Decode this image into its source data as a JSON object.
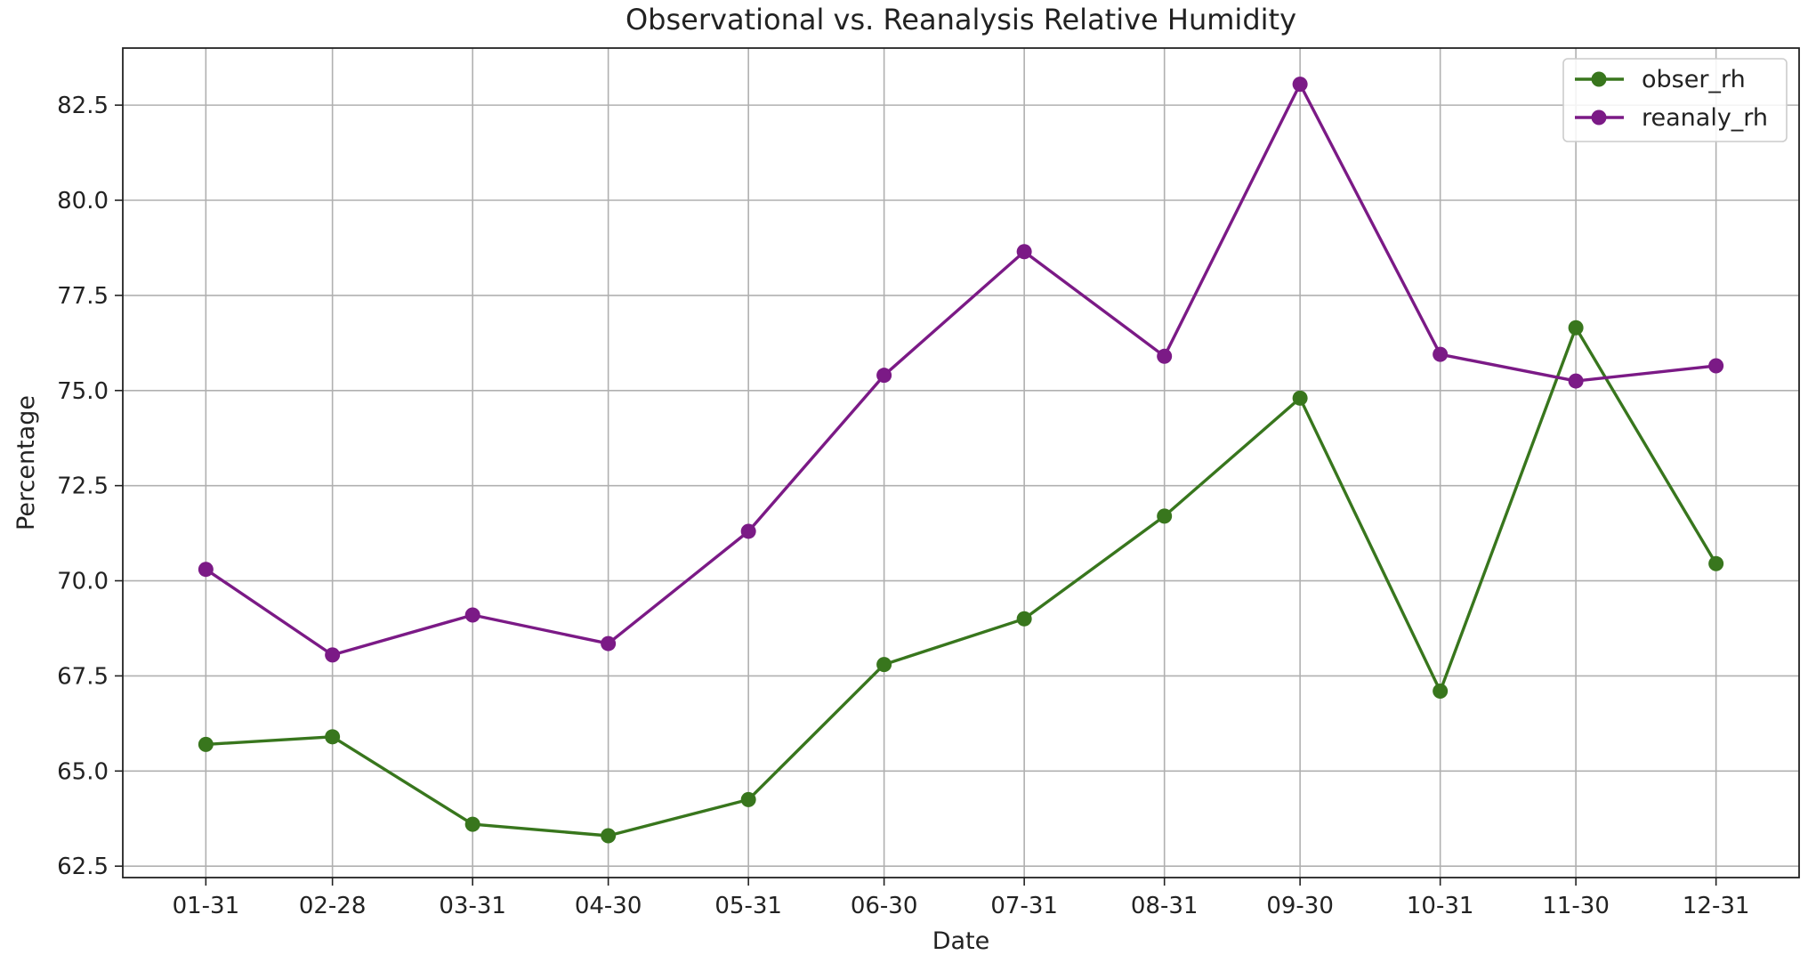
{
  "chart_data": {
    "type": "line",
    "title": "Observational vs. Reanalysis Relative Humidity",
    "xlabel": "Date",
    "ylabel": "Percentage",
    "categories": [
      "01-31",
      "02-28",
      "03-31",
      "04-30",
      "05-31",
      "06-30",
      "07-31",
      "08-31",
      "09-30",
      "10-31",
      "11-30",
      "12-31"
    ],
    "x_days": [
      31,
      59,
      90,
      120,
      151,
      181,
      212,
      243,
      273,
      304,
      334,
      365
    ],
    "series": [
      {
        "name": "obser_rh",
        "color": "#38761d",
        "values": [
          65.7,
          65.9,
          63.6,
          63.3,
          64.25,
          67.8,
          69.0,
          71.7,
          74.8,
          67.1,
          76.65,
          70.45
        ]
      },
      {
        "name": "reanaly_rh",
        "color": "#7b1a86",
        "values": [
          70.3,
          68.05,
          69.1,
          68.35,
          71.3,
          75.4,
          78.65,
          75.9,
          83.05,
          75.95,
          75.25,
          75.65
        ]
      }
    ],
    "yticks": [
      62.5,
      65.0,
      67.5,
      70.0,
      72.5,
      75.0,
      77.5,
      80.0,
      82.5
    ],
    "ylim": [
      62.2,
      84.0
    ],
    "grid": true,
    "legend_position": "top-right"
  }
}
